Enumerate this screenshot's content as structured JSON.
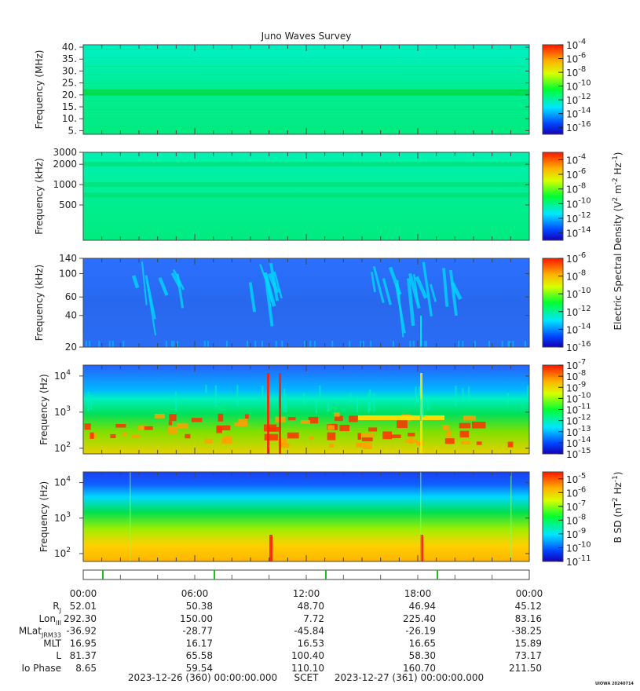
{
  "chart_data": {
    "type": "heatmap",
    "title": "Juno Waves Survey",
    "x_axis": {
      "ticks": [
        "00:00",
        "06:00",
        "12:00",
        "18:00",
        "00:00"
      ],
      "start_label": "2023-12-26 (360) 00:00:00.000",
      "mid_label": "SCET",
      "end_label": "2023-12-27 (361) 00:00:00.000"
    },
    "panels": [
      {
        "ylabel": "Frequency (MHz)",
        "yscale": "linear",
        "ylim": [
          3.5,
          41
        ],
        "yticks": [
          5,
          10,
          15,
          20,
          25,
          30,
          35,
          40
        ],
        "ytick_labels": [
          "5.",
          "10.",
          "15.",
          "20.",
          "25.",
          "30.",
          "35.",
          "40."
        ],
        "colorbar": {
          "min_exp": -17,
          "max_exp": -4,
          "labels": [
            -4,
            -6,
            -8,
            -10,
            -12,
            -14,
            -16
          ]
        }
      },
      {
        "ylabel": "Frequency (kHz)",
        "yscale": "log",
        "ylim": [
          150,
          3000
        ],
        "yticks": [
          500,
          1000,
          2000,
          3000
        ],
        "ytick_labels": [
          "500",
          "1000",
          "2000",
          "3000"
        ],
        "colorbar": {
          "min_exp": -15,
          "max_exp": -3,
          "labels": [
            -4,
            -6,
            -8,
            -10,
            -12,
            -14
          ]
        }
      },
      {
        "ylabel": "Frequency (kHz)",
        "yscale": "log",
        "ylim": [
          20,
          140
        ],
        "yticks": [
          20,
          40,
          60,
          100,
          140
        ],
        "ytick_labels": [
          "20",
          "40",
          "60",
          "100",
          "140"
        ],
        "colorbar": {
          "min_exp": -16,
          "max_exp": -6,
          "labels": [
            -6,
            -8,
            -10,
            -12,
            -14,
            -16
          ]
        }
      },
      {
        "ylabel": "Frequency (Hz)",
        "yscale": "log",
        "ylim": [
          70,
          20000
        ],
        "yticks": [
          100,
          1000,
          10000
        ],
        "ytick_labels": [
          "10",
          "10",
          "10"
        ],
        "ytick_exps": [
          "2",
          "3",
          "4"
        ],
        "colorbar": {
          "min_exp": -15,
          "max_exp": -7,
          "labels": [
            -7,
            -8,
            -9,
            -10,
            -11,
            -12,
            -13,
            -14,
            -15
          ]
        }
      },
      {
        "ylabel": "Frequency (Hz)",
        "yscale": "log",
        "ylim": [
          60,
          20000
        ],
        "yticks": [
          100,
          1000,
          10000
        ],
        "ytick_labels": [
          "10",
          "10",
          "10"
        ],
        "ytick_exps": [
          "2",
          "3",
          "4"
        ],
        "colorbar": {
          "min_exp": -11,
          "max_exp": -4.5,
          "labels": [
            -5,
            -6,
            -7,
            -8,
            -9,
            -10,
            -11
          ]
        }
      }
    ],
    "colorbar_label_efield": {
      "main": "Electric Spectral Density (V",
      "sup1": "2",
      "mid1": " m",
      "sup2": "-2",
      "mid2": " Hz",
      "sup3": "-1",
      "end": ")"
    },
    "colorbar_label_bfield": {
      "main": "B SD (nT",
      "sup1": "2",
      "mid1": " Hz",
      "sup2": "-1",
      "end": ")"
    },
    "exp_base": "10",
    "ephemeris": {
      "rows": [
        {
          "label": "R",
          "sub": "J",
          "values": [
            "52.01",
            "50.38",
            "48.70",
            "46.94",
            "45.12"
          ]
        },
        {
          "label": "Lon",
          "sub": "III",
          "values": [
            "292.30",
            "150.00",
            "7.72",
            "225.40",
            "83.16"
          ]
        },
        {
          "label": "MLat",
          "sub": "JRM33",
          "values": [
            "-36.92",
            "-28.77",
            "-45.84",
            "-26.19",
            "-38.25"
          ]
        },
        {
          "label": "MLT",
          "sub": "",
          "values": [
            "16.95",
            "16.17",
            "16.53",
            "16.65",
            "15.89"
          ]
        },
        {
          "label": "L",
          "sub": "",
          "values": [
            "81.37",
            "65.58",
            "100.40",
            "58.30",
            "73.17"
          ]
        },
        {
          "label": "Io Phase",
          "sub": "",
          "values": [
            "8.65",
            "59.54",
            "110.10",
            "160.70",
            "211.50"
          ]
        }
      ]
    },
    "footer_tag": "UIOWA 20240714"
  }
}
